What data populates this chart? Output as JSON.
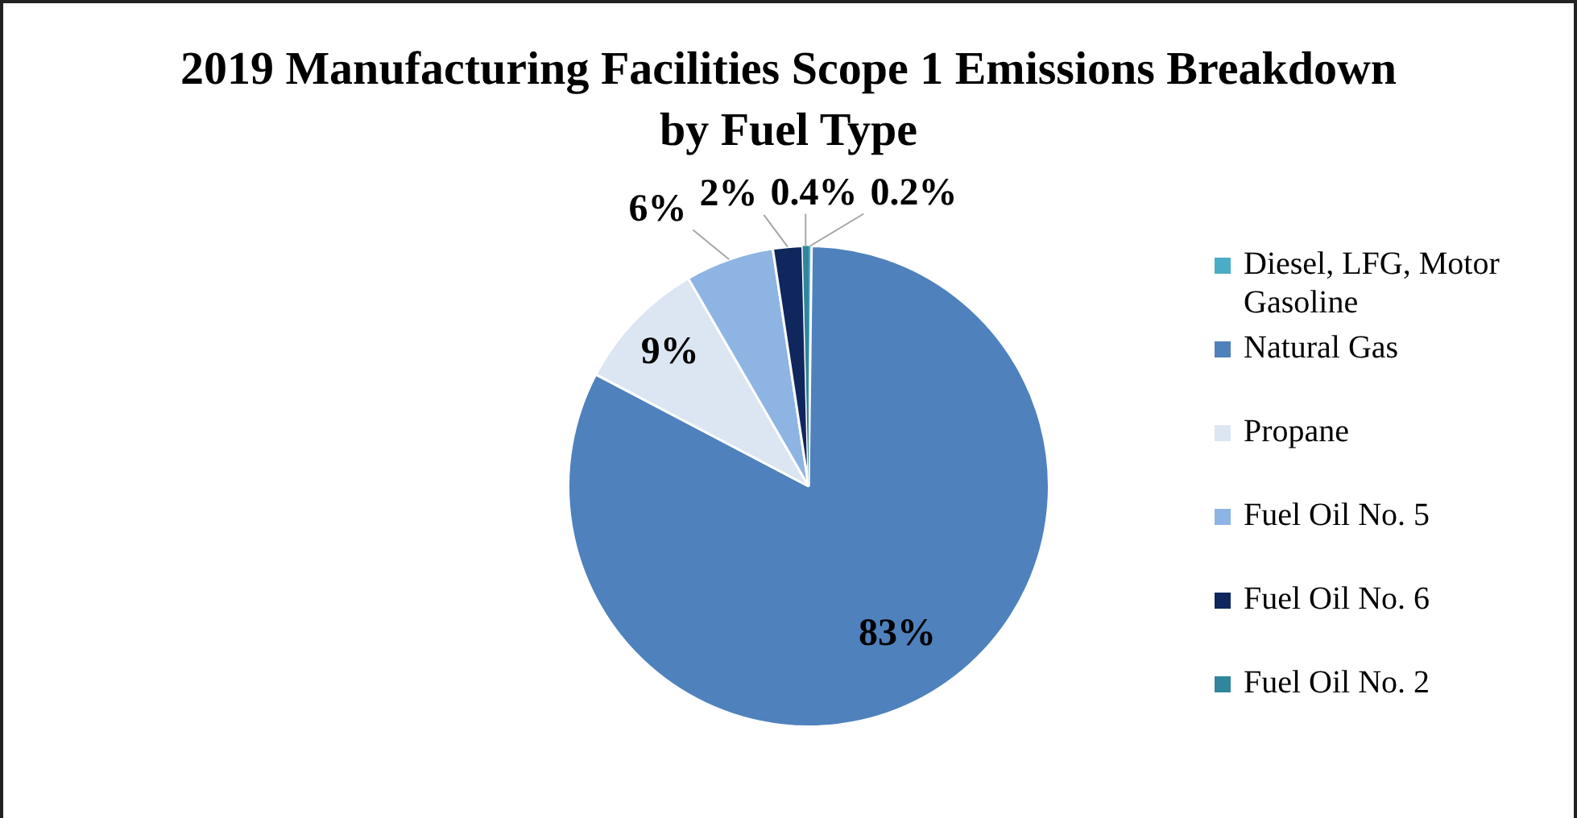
{
  "chart_data": {
    "type": "pie",
    "title": "2019 Manufacturing Facilities Scope 1 Emissions Breakdown by Fuel Type",
    "categories": [
      "Diesel, LFG, Motor Gasoline",
      "Natural Gas",
      "Propane",
      "Fuel Oil No. 5",
      "Fuel Oil No. 6",
      "Fuel Oil No. 2"
    ],
    "values": [
      0.2,
      83,
      9,
      6,
      2,
      0.4
    ],
    "value_labels": [
      "0.2%",
      "83%",
      "9%",
      "6%",
      "2%",
      "0.4%"
    ],
    "colors": [
      "#4bacc6",
      "#4f81bd",
      "#dce6f2",
      "#8eb4e3",
      "#10275e",
      "#31859c"
    ],
    "legend": "right"
  }
}
